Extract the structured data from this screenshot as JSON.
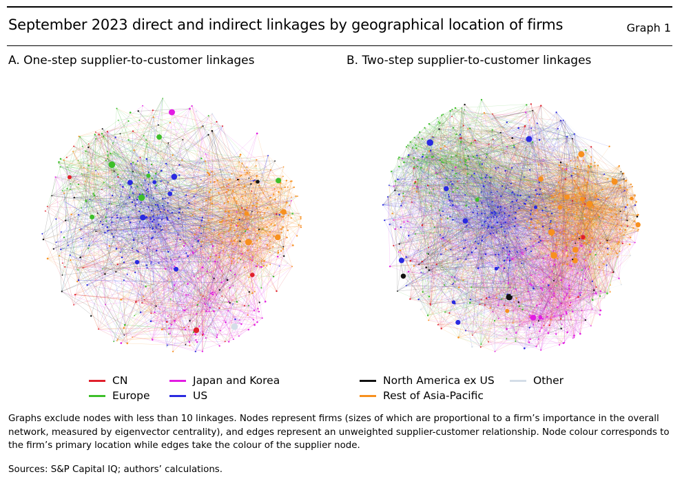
{
  "header": {
    "title": "September 2023 direct and indirect linkages by geographical location of firms",
    "graph_number": "Graph 1"
  },
  "chart_data": [
    {
      "type": "network",
      "title": "A. One-step supplier-to-customer linkages",
      "layout": "circular cloud",
      "density": "moderate",
      "dominant_regions": [
        "Rest of Asia-Pacific",
        "US",
        "Japan and Korea",
        "Europe"
      ],
      "cluster_hints": [
        {
          "region": "Europe",
          "area": "upper-left",
          "weight": 0.8
        },
        {
          "region": "US",
          "area": "center",
          "weight": 1.0
        },
        {
          "region": "Rest of Asia-Pacific",
          "area": "right",
          "weight": 1.0
        },
        {
          "region": "Japan and Korea",
          "area": "bottom-right",
          "weight": 0.9
        },
        {
          "region": "US",
          "area": "left",
          "weight": 0.6
        }
      ]
    },
    {
      "type": "network",
      "title": "B. Two-step supplier-to-customer linkages",
      "layout": "circular cloud",
      "density": "high",
      "dominant_regions": [
        "Rest of Asia-Pacific",
        "US",
        "Japan and Korea",
        "Europe"
      ],
      "cluster_hints": [
        {
          "region": "Europe",
          "area": "upper-left",
          "weight": 0.8
        },
        {
          "region": "Rest of Asia-Pacific",
          "area": "right",
          "weight": 1.0
        },
        {
          "region": "Japan and Korea",
          "area": "bottom-right",
          "weight": 0.9
        },
        {
          "region": "US",
          "area": "center",
          "weight": 0.9
        }
      ]
    }
  ],
  "legend": [
    {
      "label": "CN",
      "color": "#e0202c"
    },
    {
      "label": "Japan and Korea",
      "color": "#e21be2"
    },
    {
      "label": "North America ex US",
      "color": "#111111"
    },
    {
      "label": "Other",
      "color": "#d4dde8"
    },
    {
      "label": "Europe",
      "color": "#3dbf2a"
    },
    {
      "label": "US",
      "color": "#2a2ae0"
    },
    {
      "label": "Rest of Asia-Pacific",
      "color": "#f7901e"
    }
  ],
  "notes": "Graphs exclude nodes with less than 10 linkages. Nodes represent firms (sizes of which are proportional to a firm’s importance in the overall network, measured by eigenvector centrality), and edges represent an unweighted supplier-customer relationship. Node colour corresponds to the firm’s primary location while edges take the colour of the supplier node.",
  "sources": "Sources: S&P Capital IQ; authors’ calculations."
}
